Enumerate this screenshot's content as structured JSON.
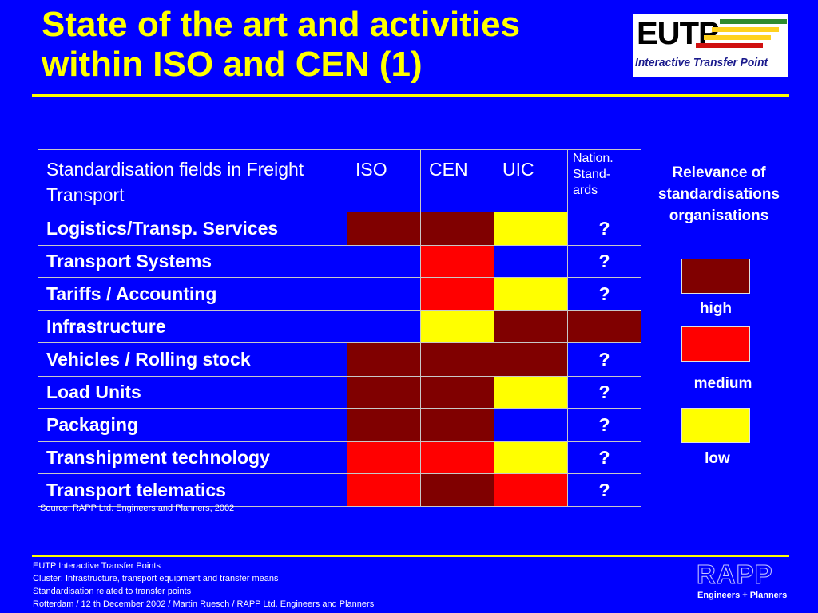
{
  "title": {
    "line1": "State of the art and activities",
    "line2": "within ISO and CEN (1)"
  },
  "logo": {
    "text": "EUTP",
    "subtitle": "Interactive Transfer Point",
    "bar_colors": [
      "#2e8b2e",
      "#ffd21e",
      "#d01010"
    ]
  },
  "table": {
    "header": {
      "field": "Standardisation fields in Freight Transport",
      "iso": "ISO",
      "cen": "CEN",
      "uic": "UIC",
      "nation_1": "Nation.",
      "nation_2": "Stand-",
      "nation_3": "ards"
    },
    "rows": [
      {
        "field": "Logistics/Transp. Services",
        "iso": "high",
        "cen": "high",
        "uic": "low",
        "nation": "?"
      },
      {
        "field": "Transport Systems",
        "iso": "none",
        "cen": "medium",
        "uic": "none",
        "nation": "?"
      },
      {
        "field": "Tariffs / Accounting",
        "iso": "none",
        "cen": "medium",
        "uic": "low",
        "nation": "?"
      },
      {
        "field": "Infrastructure",
        "iso": "none",
        "cen": "low",
        "uic": "high",
        "nation": "high"
      },
      {
        "field": "Vehicles / Rolling stock",
        "iso": "high",
        "cen": "high",
        "uic": "high",
        "nation": "?"
      },
      {
        "field": "Load Units",
        "iso": "high",
        "cen": "high",
        "uic": "low",
        "nation": "?"
      },
      {
        "field": "Packaging",
        "iso": "high",
        "cen": "high",
        "uic": "none",
        "nation": "?"
      },
      {
        "field": "Transhipment technology",
        "iso": "medium",
        "cen": "medium",
        "uic": "low",
        "nation": "?"
      },
      {
        "field": "Transport telematics",
        "iso": "medium",
        "cen": "high",
        "uic": "medium",
        "nation": "?"
      }
    ]
  },
  "source": "Source: RAPP Ltd. Engineers and Planners, 2002",
  "legend": {
    "title": "Relevance of standardisations organisations",
    "high": "high",
    "medium": "medium",
    "low": "low"
  },
  "colors": {
    "background": "#0000ff",
    "title": "#ffff00",
    "high": "#800000",
    "medium": "#ff0000",
    "low": "#ffff00",
    "none": "#0000ff"
  },
  "footer": {
    "line1": "EUTP Interactive Transfer Points",
    "line2": "Cluster: Infrastructure, transport equipment and transfer means",
    "line3": "Standardisation related to transfer points",
    "line4": "Rotterdam / 12 th December 2002 / Martin Ruesch / RAPP Ltd. Engineers and Planners"
  },
  "rapp": {
    "logo": "RAPP",
    "subtitle": "Engineers + Planners"
  }
}
